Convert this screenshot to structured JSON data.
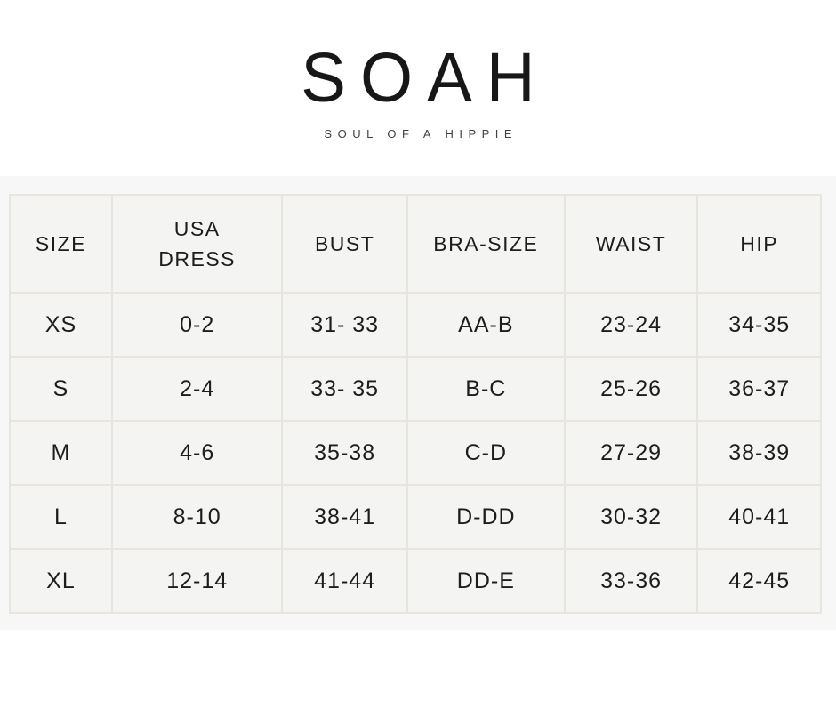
{
  "brand": {
    "logo": "SOAH",
    "tagline": "SOUL OF A HIPPIE"
  },
  "size_chart": {
    "columns": [
      "SIZE",
      "USA\nDRESS",
      "BUST",
      "BRA-SIZE",
      "WAIST",
      "HIP"
    ],
    "column_widths_pct": [
      12.6,
      21.0,
      15.4,
      19.4,
      16.4,
      15.2
    ],
    "rows": [
      [
        "XS",
        "0-2",
        "31- 33",
        "AA-B",
        "23-24",
        "34-35"
      ],
      [
        "S",
        "2-4",
        "33- 35",
        "B-C",
        "25-26",
        "36-37"
      ],
      [
        "M",
        "4-6",
        "35-38",
        "C-D",
        "27-29",
        "38-39"
      ],
      [
        "L",
        "8-10",
        "38-41",
        "D-DD",
        "30-32",
        "40-41"
      ],
      [
        "XL",
        "12-14",
        "41-44",
        "DD-E",
        "33-36",
        "42-45"
      ]
    ]
  },
  "colors": {
    "page_background": "#ffffff",
    "band_background": "#f7f7f7",
    "cell_background": "#f4f4f2",
    "table_border": "#e8e5dc",
    "text": "#1d1d1f",
    "tagline_text": "#3f3f3f",
    "logo_text": "#17171a"
  }
}
